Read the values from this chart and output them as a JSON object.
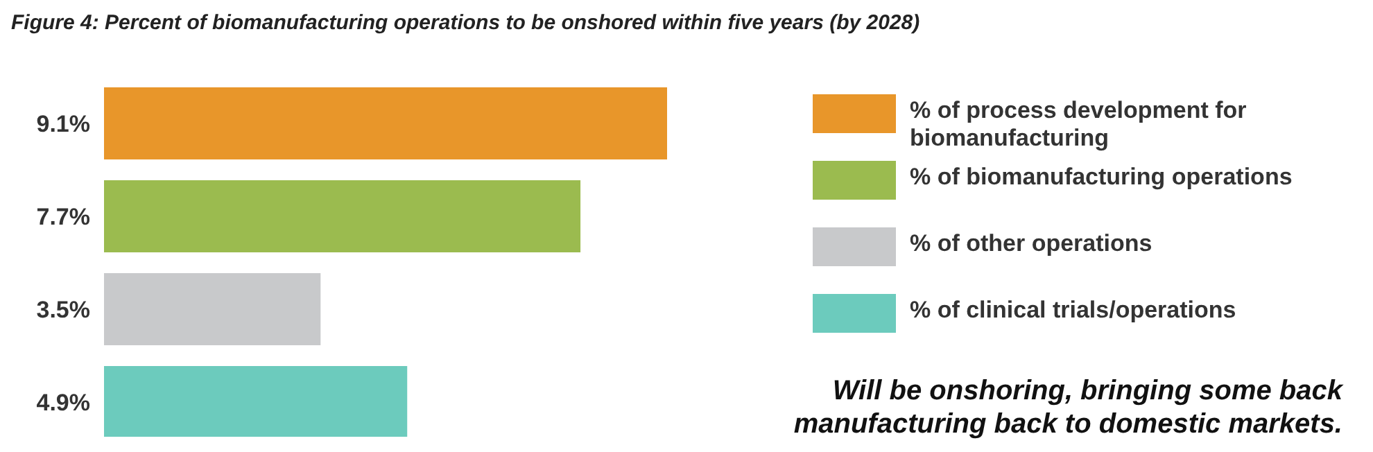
{
  "chart_data": {
    "type": "bar",
    "orientation": "horizontal",
    "title": "Figure 4: Percent of biomanufacturing operations to be onshored within five years (by 2028)",
    "categories": [
      null
    ],
    "series": [
      {
        "name": "% of process development for biomanufacturing",
        "color": "#e8962a",
        "values": [
          9.1
        ],
        "value_labels": [
          "9.1%"
        ]
      },
      {
        "name": "% of biomanufacturing operations",
        "color": "#9bbb4f",
        "values": [
          7.7
        ],
        "value_labels": [
          "7.7%"
        ]
      },
      {
        "name": "% of other operations",
        "color": "#c8c9cb",
        "values": [
          3.5
        ],
        "value_labels": [
          "3.5%"
        ]
      },
      {
        "name": "% of clinical trials/operations",
        "color": "#6ccbbd",
        "values": [
          4.9
        ],
        "value_labels": [
          "4.9%"
        ]
      }
    ],
    "legend": "right",
    "tick_labels": false,
    "annotations": [
      "Will be onshoring, bringing some back manufacturing back to domestic markets."
    ]
  }
}
